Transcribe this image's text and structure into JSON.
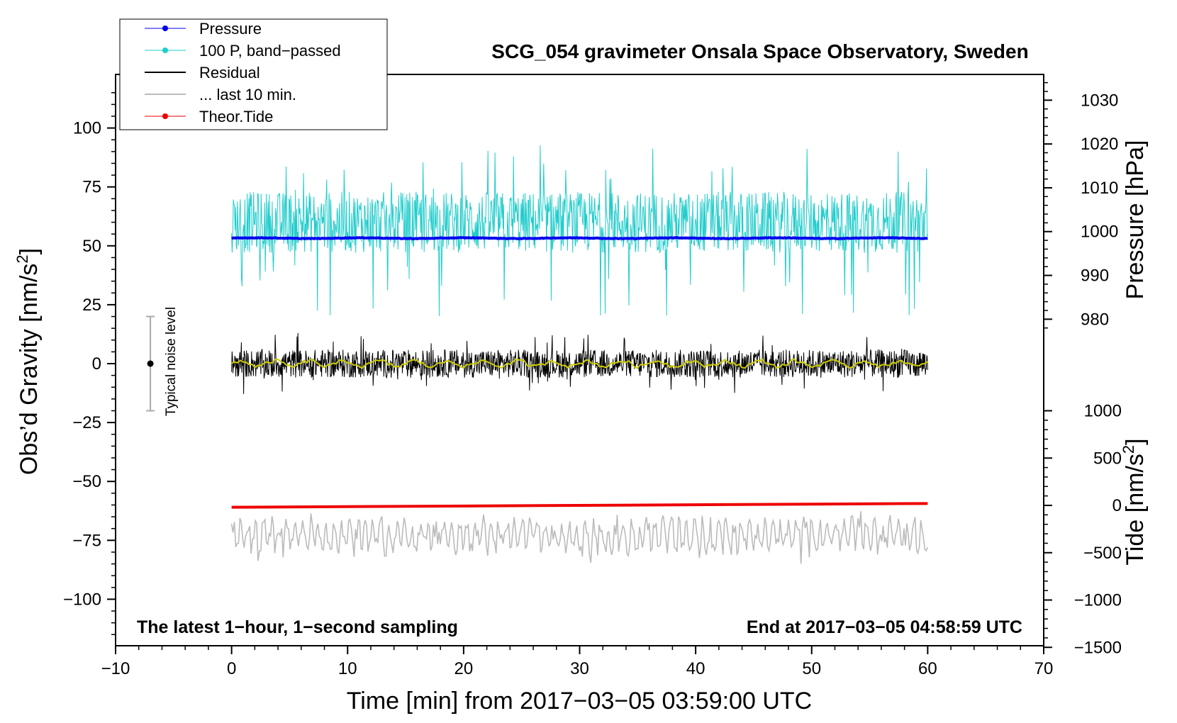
{
  "chart_data": {
    "type": "line",
    "title": "SCG_054 gravimeter Onsala Space Observatory, Sweden",
    "xlabel": "Time [min] from 2017−03−05 03:59:00 UTC",
    "ylabel_left_main": "Obs’d Gravity [nm/s",
    "ylabel_left_sup": "2",
    "ylabel_left_end": "]",
    "ylabel_right_top": "Pressure [hPa]",
    "ylabel_right_bottom_main": "Tide [nm/s",
    "ylabel_right_bottom_sup": "2",
    "ylabel_right_bottom_end": "]",
    "xlim": [
      -10,
      70
    ],
    "ylim_left": [
      -120,
      120
    ],
    "x_ticks": [
      "−10",
      "0",
      "10",
      "20",
      "30",
      "40",
      "50",
      "60",
      "70"
    ],
    "left_ticks": [
      "100",
      "75",
      "50",
      "25",
      "0",
      "−25",
      "−50",
      "−75",
      "−100"
    ],
    "pressure_ticks": [
      "1030",
      "1020",
      "1010",
      "1000",
      "990",
      "980"
    ],
    "tide_ticks": [
      "1000",
      "500",
      "0",
      "−500",
      "−1000",
      "−1500"
    ],
    "annotation_left": "The latest 1−hour, 1−second sampling",
    "annotation_right": "End at 2017−03−05 04:58:59 UTC",
    "noise_label": "Typical noise level",
    "noise_bar": {
      "x": -7,
      "center": 0,
      "half_range": 20
    },
    "legend": [
      {
        "label": "Pressure",
        "color": "#0000ee",
        "marker": true
      },
      {
        "label": "100 P, band−passed",
        "color": "#22cccc",
        "marker": true
      },
      {
        "label": "Residual",
        "color": "#000000",
        "marker": false
      },
      {
        "label": "... last 10 min.",
        "color": "#bbbbbb",
        "marker": false
      },
      {
        "label": "Theor.Tide",
        "color": "#ee0000",
        "marker": true
      }
    ],
    "series": [
      {
        "name": "Pressure",
        "color": "#0000ee",
        "axis": "pressure_hPa",
        "x_range": [
          0,
          60
        ],
        "approx_level": 998.5
      },
      {
        "name": "100 P, band−passed",
        "color": "#22cccc",
        "axis": "gravity_nm_s2",
        "x_range": [
          0,
          60
        ],
        "approx_center": 60,
        "approx_range": [
          12,
          97
        ]
      },
      {
        "name": "Residual",
        "color": "#000000",
        "axis": "gravity_nm_s2",
        "x_range": [
          0,
          60
        ],
        "approx_center": 0,
        "approx_range": [
          -13,
          15
        ]
      },
      {
        "name": "Residual smoothed",
        "color": "#cccc00",
        "axis": "gravity_nm_s2",
        "x_range": [
          0,
          60
        ],
        "approx_center": 0
      },
      {
        "name": "... last 10 min.",
        "color": "#bbbbbb",
        "axis": "gravity_nm_s2",
        "x_range": [
          0,
          60
        ],
        "approx_center": -73,
        "approx_range": [
          -85,
          -59
        ]
      },
      {
        "name": "Theor.Tide",
        "color": "#ee0000",
        "axis": "tide_nm_s2",
        "x_range": [
          0,
          60
        ],
        "start": -20,
        "end": 20
      }
    ]
  }
}
